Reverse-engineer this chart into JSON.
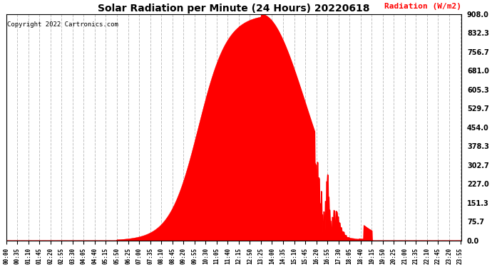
{
  "title": "Solar Radiation per Minute (24 Hours) 20220618",
  "ylabel": "Radiation (W/m2)",
  "ylabel_color": "red",
  "copyright_text": "Copyright 2022 Cartronics.com",
  "fill_color": "red",
  "line_color": "red",
  "background_color": "white",
  "grid_color": "#bbbbbb",
  "yticks": [
    0.0,
    75.7,
    151.3,
    227.0,
    302.7,
    378.3,
    454.0,
    529.7,
    605.3,
    681.0,
    756.7,
    832.3,
    908.0
  ],
  "ymax": 908.0,
  "ymin": 0.0,
  "x_tick_interval_minutes": 35,
  "total_minutes": 1440,
  "dashed_zero_line_color": "red",
  "sunrise_min": 350,
  "sunset_min": 1155,
  "peak_min": 805,
  "peak_value": 908.0
}
